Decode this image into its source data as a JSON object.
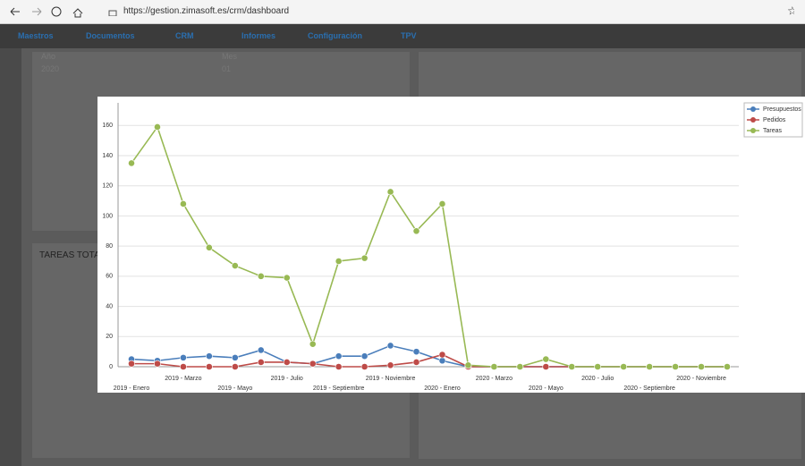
{
  "browser": {
    "url": "https://gestion.zimasoft.es/crm/dashboard"
  },
  "nav": [
    "Maestros",
    "Documentos",
    "CRM",
    "Informes",
    "Configuración",
    "TPV"
  ],
  "panel": {
    "year_label": "Año",
    "year_value": "2020",
    "month_label": "Mes",
    "month_value": "01",
    "tasks_title": "TAREAS TOTA"
  },
  "chart_data": {
    "type": "line",
    "categories": [
      "2019 - Enero",
      null,
      "2019 - Marzo",
      null,
      "2019 - Mayo",
      null,
      "2019 - Julio",
      null,
      "2019 - Septiembre",
      null,
      "2019 - Noviembre",
      null,
      "2020 - Enero",
      null,
      "2020 - Marzo",
      null,
      "2020 - Mayo",
      null,
      "2020 - Julio",
      null,
      "2020 - Septiembre",
      null,
      "2020 - Noviembre",
      null
    ],
    "series": [
      {
        "name": "Presupuestos",
        "color": "#4a7ebb",
        "values": [
          5,
          4,
          6,
          7,
          6,
          11,
          3,
          2,
          7,
          7,
          14,
          10,
          4,
          0,
          0,
          0,
          0,
          0,
          0,
          0,
          0,
          0,
          0,
          0
        ]
      },
      {
        "name": "Pedidos",
        "color": "#be4b48",
        "values": [
          2,
          2,
          0,
          0,
          0,
          3,
          3,
          2,
          0,
          0,
          1,
          3,
          8,
          0,
          0,
          0,
          0,
          0,
          0,
          0,
          0,
          0,
          0,
          0
        ]
      },
      {
        "name": "Tareas",
        "color": "#98b954",
        "values": [
          135,
          159,
          108,
          79,
          67,
          60,
          59,
          15,
          70,
          72,
          116,
          90,
          108,
          1,
          0,
          0,
          5,
          0,
          0,
          0,
          0,
          0,
          0,
          0
        ]
      }
    ],
    "ylim": [
      0,
      175
    ],
    "yticks": [
      0,
      20,
      40,
      60,
      80,
      100,
      120,
      140,
      160
    ],
    "grid": true,
    "legend": "top-right"
  }
}
